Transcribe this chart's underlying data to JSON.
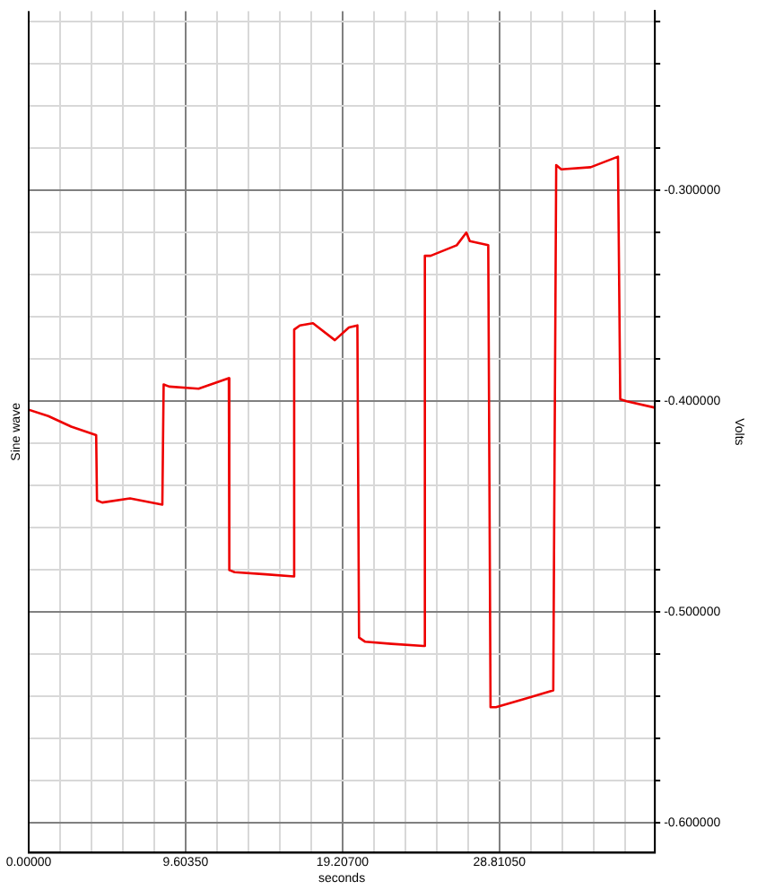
{
  "chart_data": {
    "type": "line",
    "xlabel": "seconds",
    "ylabel": "Volts",
    "annotations": [
      "Sine wave"
    ],
    "x": [
      0,
      1.2,
      2.6,
      4.13,
      4.18,
      4.5,
      6.2,
      8.18,
      8.26,
      8.6,
      10.4,
      12.25,
      12.28,
      12.6,
      14.5,
      16.23,
      16.25,
      16.6,
      17.4,
      18.74,
      19.6,
      20.12,
      20.22,
      20.6,
      22.2,
      24.17,
      24.25,
      24.6,
      26.2,
      26.79,
      27.0,
      28.13,
      28.27,
      28.6,
      30.4,
      32.11,
      32.29,
      32.6,
      34.4,
      36.07,
      36.21,
      36.6,
      38.33
    ],
    "series": [
      {
        "color": "#ee0000",
        "values": [
          -0.404,
          -0.407,
          -0.412,
          -0.416,
          -0.447,
          -0.448,
          -0.446,
          -0.449,
          -0.392,
          -0.393,
          -0.394,
          -0.389,
          -0.48,
          -0.481,
          -0.482,
          -0.483,
          -0.366,
          -0.364,
          -0.363,
          -0.371,
          -0.365,
          -0.364,
          -0.512,
          -0.514,
          -0.515,
          -0.516,
          -0.331,
          -0.331,
          -0.326,
          -0.32,
          -0.324,
          -0.326,
          -0.545,
          -0.545,
          -0.541,
          -0.537,
          -0.288,
          -0.29,
          -0.289,
          -0.284,
          -0.399,
          -0.4,
          -0.403
        ]
      }
    ],
    "xlim": [
      0,
      38.33
    ],
    "xticks": [
      {
        "value": 0,
        "label": "0.00000"
      },
      {
        "value": 1.9207,
        "label": null
      },
      {
        "value": 3.8414,
        "label": null
      },
      {
        "value": 5.7621,
        "label": null
      },
      {
        "value": 7.6828,
        "label": null
      },
      {
        "value": 9.6035,
        "label": "9.60350"
      },
      {
        "value": 11.5242,
        "label": null
      },
      {
        "value": 13.4449,
        "label": null
      },
      {
        "value": 15.3656,
        "label": null
      },
      {
        "value": 17.2863,
        "label": null
      },
      {
        "value": 19.207,
        "label": "19.20700"
      },
      {
        "value": 21.1277,
        "label": null
      },
      {
        "value": 23.0484,
        "label": null
      },
      {
        "value": 24.9691,
        "label": null
      },
      {
        "value": 26.8898,
        "label": null
      },
      {
        "value": 28.8105,
        "label": "28.81050"
      },
      {
        "value": 30.7312,
        "label": null
      },
      {
        "value": 32.6519,
        "label": null
      },
      {
        "value": 34.5726,
        "label": null
      },
      {
        "value": 36.4933,
        "label": null
      }
    ],
    "ylim": [
      -0.614,
      -0.215
    ],
    "yticks": [
      {
        "value": -0.6,
        "label": "-0.600000"
      },
      {
        "value": -0.58,
        "label": null
      },
      {
        "value": -0.56,
        "label": null
      },
      {
        "value": -0.54,
        "label": null
      },
      {
        "value": -0.52,
        "label": null
      },
      {
        "value": -0.5,
        "label": "-0.500000"
      },
      {
        "value": -0.48,
        "label": null
      },
      {
        "value": -0.46,
        "label": null
      },
      {
        "value": -0.44,
        "label": null
      },
      {
        "value": -0.42,
        "label": null
      },
      {
        "value": -0.4,
        "label": "-0.400000"
      },
      {
        "value": -0.38,
        "label": null
      },
      {
        "value": -0.36,
        "label": null
      },
      {
        "value": -0.34,
        "label": null
      },
      {
        "value": -0.32,
        "label": null
      },
      {
        "value": -0.3,
        "label": "-0.300000"
      },
      {
        "value": -0.28,
        "label": null
      },
      {
        "value": -0.26,
        "label": null
      },
      {
        "value": -0.24,
        "label": null
      },
      {
        "value": -0.22,
        "label": null
      }
    ],
    "grid": true,
    "legend": false,
    "marker": "none",
    "line_style": "solid"
  }
}
